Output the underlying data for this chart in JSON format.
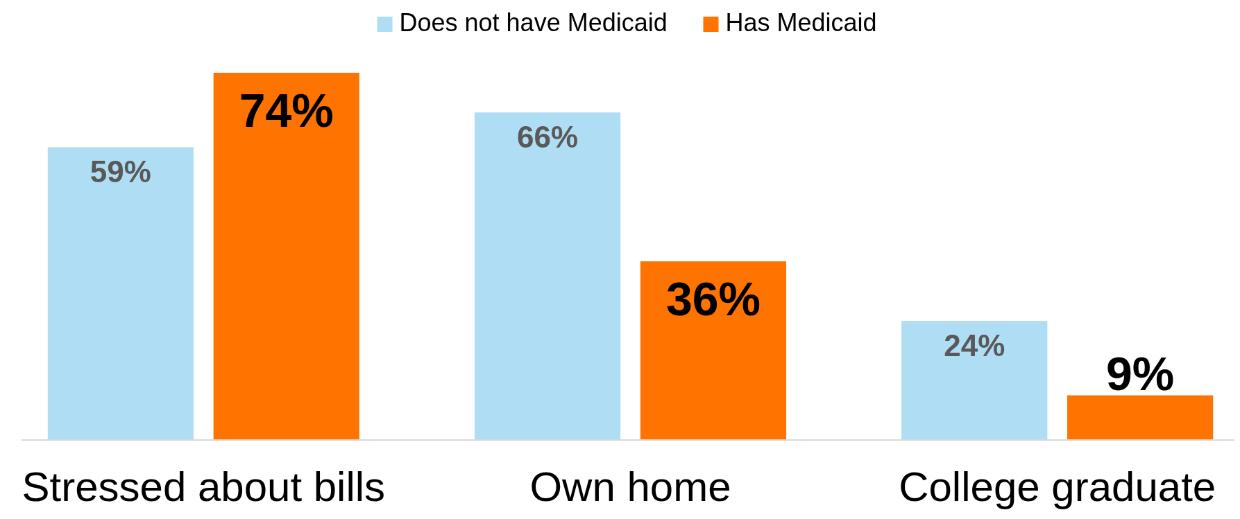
{
  "chart_data": {
    "type": "bar",
    "categories": [
      "Stressed about bills",
      "Own home",
      "College graduate"
    ],
    "series": [
      {
        "name": "Does not have Medicaid",
        "color": "#afdef4",
        "values": [
          59,
          66,
          24
        ],
        "value_labels": [
          "59%",
          "66%",
          "24%"
        ]
      },
      {
        "name": "Has Medicaid",
        "color": "#ff7300",
        "values": [
          74,
          36,
          9
        ],
        "value_labels": [
          "74%",
          "36%",
          "9%"
        ]
      }
    ],
    "legend": "top"
  }
}
